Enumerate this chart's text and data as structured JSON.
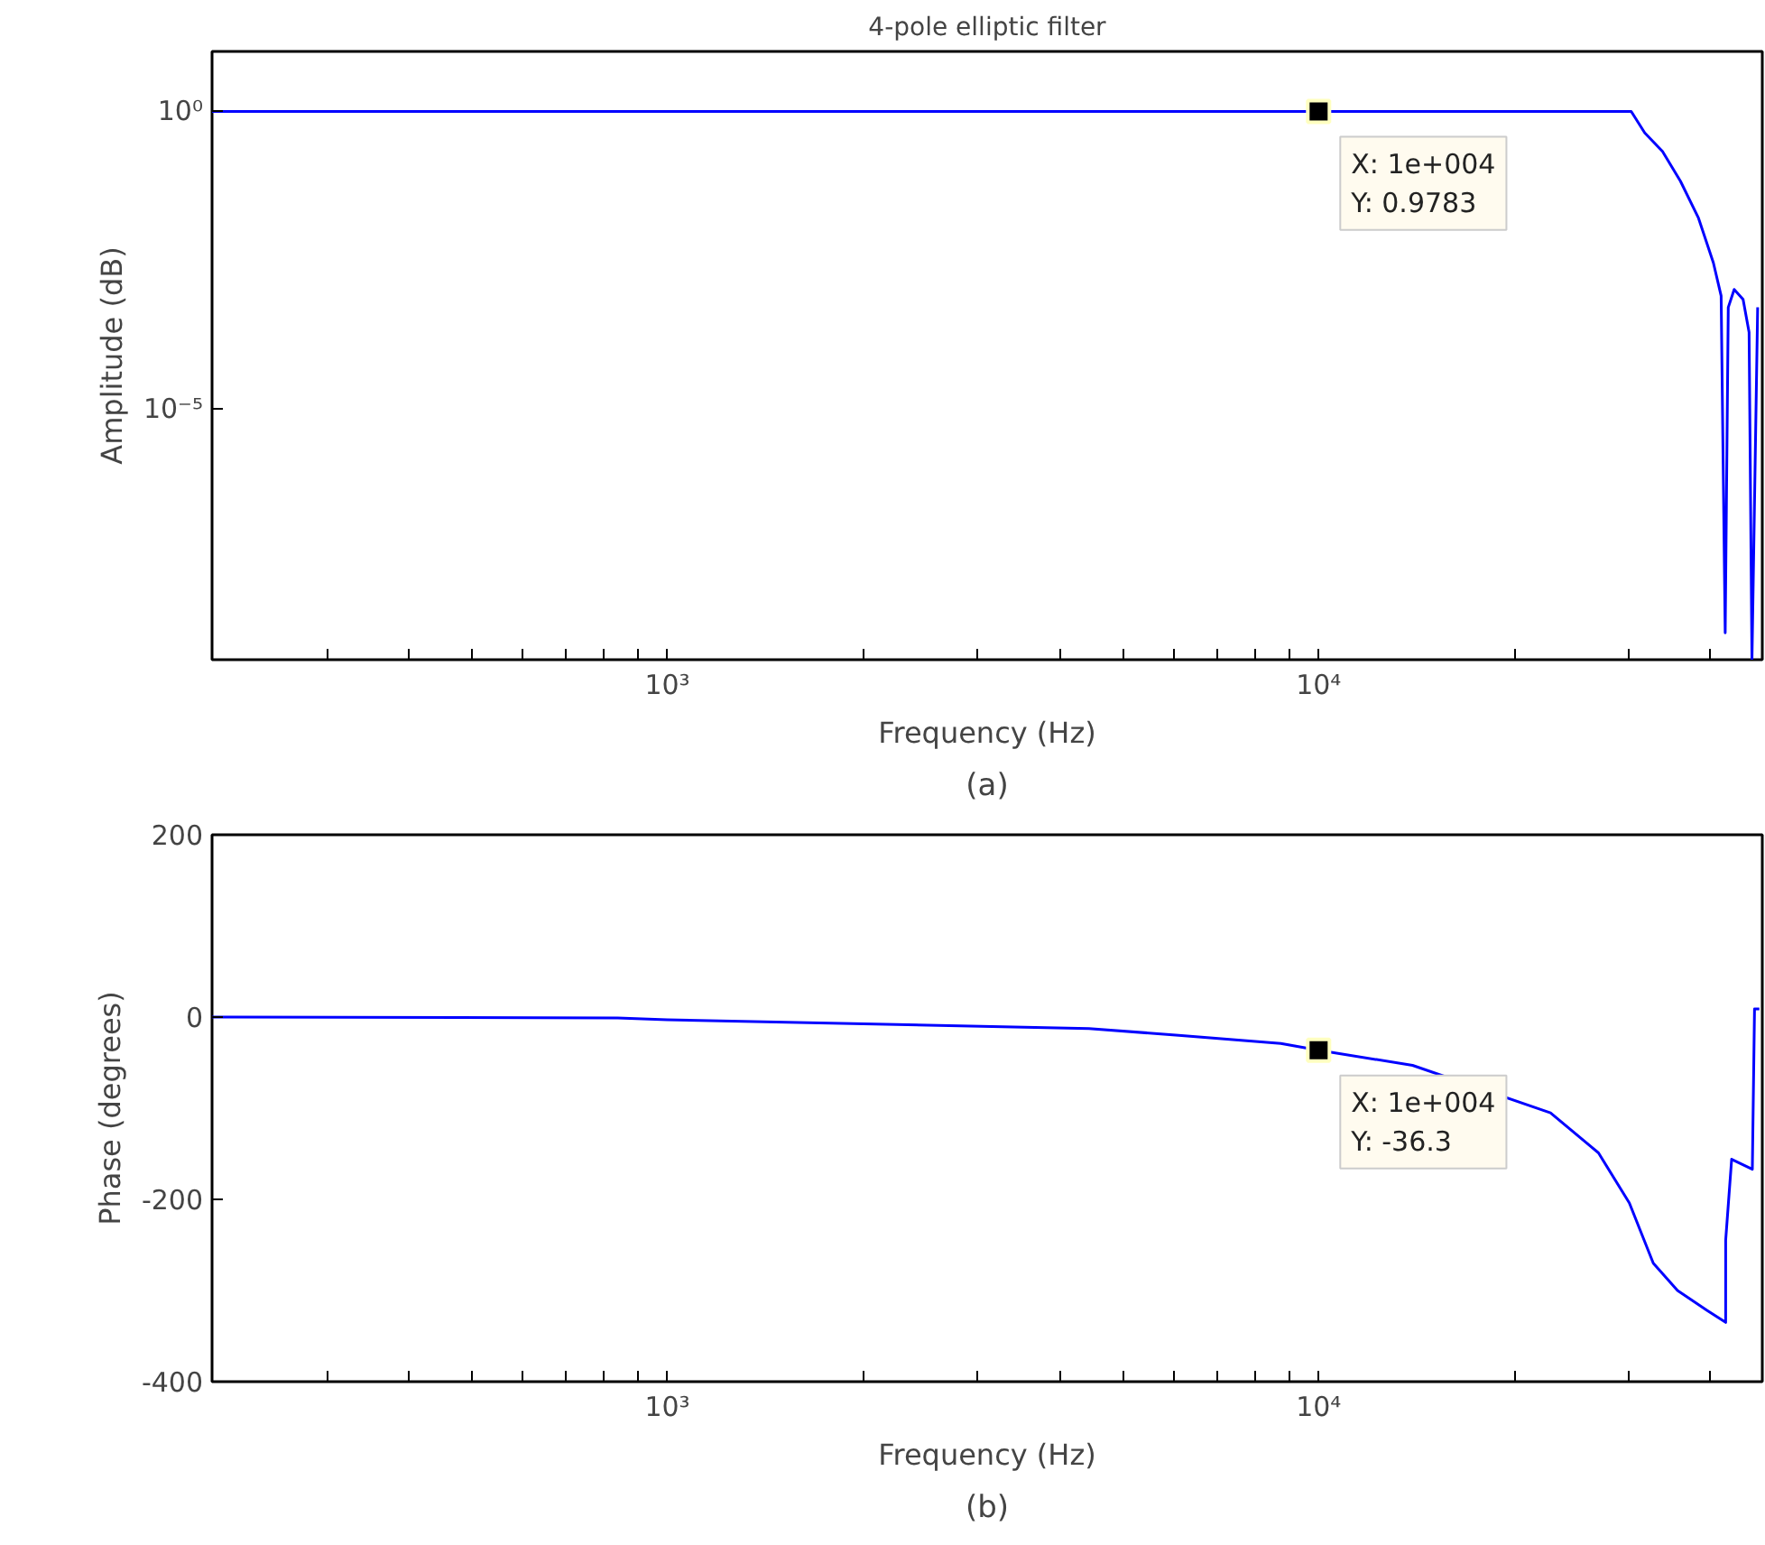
{
  "chart_data": [
    {
      "type": "line",
      "title": "4-pole elliptic filter",
      "xlabel": "Frequency (Hz)",
      "ylabel": "Amplitude (dB)",
      "log": "xy",
      "x": [
        200,
        1000,
        10000,
        30200,
        31680,
        33730,
        35940,
        38310,
        40380,
        41500,
        42100,
        42560,
        43460,
        44850,
        45810,
        46280,
        47220
      ],
      "series": [
        {
          "color": "#0000ff",
          "values": [
            0.9783,
            0.9783,
            0.9783,
            0.9783,
            0.427,
            0.209,
            0.066,
            0.0158,
            0.0028,
            0.00078,
            1.7e-09,
            0.0005,
            0.001,
            0.00068,
            0.00019,
            6e-10,
            0.0005
          ]
        }
      ],
      "xlim": [
        200,
        48000
      ],
      "ylim": [
        6e-10,
        10
      ],
      "xticks": [
        {
          "value": 300,
          "label": null
        },
        {
          "value": 400,
          "label": null
        },
        {
          "value": 500,
          "label": null
        },
        {
          "value": 600,
          "label": null
        },
        {
          "value": 700,
          "label": null
        },
        {
          "value": 800,
          "label": null
        },
        {
          "value": 900,
          "label": null
        },
        {
          "value": 1000,
          "label": "10³"
        },
        {
          "value": 2000,
          "label": null
        },
        {
          "value": 3000,
          "label": null
        },
        {
          "value": 4000,
          "label": null
        },
        {
          "value": 5000,
          "label": null
        },
        {
          "value": 6000,
          "label": null
        },
        {
          "value": 7000,
          "label": null
        },
        {
          "value": 8000,
          "label": null
        },
        {
          "value": 9000,
          "label": null
        },
        {
          "value": 10000,
          "label": "10⁴"
        },
        {
          "value": 20000,
          "label": null
        },
        {
          "value": 30000,
          "label": null
        },
        {
          "value": 40000,
          "label": null
        }
      ],
      "yticks": [
        {
          "value": 1e-05,
          "label": "10⁻⁵"
        },
        {
          "value": 1,
          "label": "10⁰"
        }
      ],
      "annotations": [
        {
          "text": "X: 1e+004\nY: 0.9783",
          "x": 10000,
          "y": 0.9783
        },
        "(a)"
      ]
    },
    {
      "type": "line",
      "xlabel": "Frequency (Hz)",
      "ylabel": "Phase (degrees)",
      "log": "x",
      "x": [
        200,
        839,
        1000,
        4440,
        6100,
        8750,
        10000,
        13940,
        22700,
        26900,
        30000,
        32650,
        35570,
        39520,
        42170,
        42171,
        43070,
        46340,
        46700,
        47500
      ],
      "series": [
        {
          "color": "#0000ff",
          "values": [
            0,
            -1,
            -3,
            -12.6,
            -20,
            -29,
            -36.3,
            -53,
            -105,
            -149,
            -204,
            -270,
            -300,
            -322,
            -335,
            -245,
            -156,
            -167,
            9,
            9
          ]
        }
      ],
      "xlim": [
        200,
        48000
      ],
      "ylim": [
        -400,
        200
      ],
      "xticks": [
        {
          "value": 300,
          "label": null
        },
        {
          "value": 400,
          "label": null
        },
        {
          "value": 500,
          "label": null
        },
        {
          "value": 600,
          "label": null
        },
        {
          "value": 700,
          "label": null
        },
        {
          "value": 800,
          "label": null
        },
        {
          "value": 900,
          "label": null
        },
        {
          "value": 1000,
          "label": "10³"
        },
        {
          "value": 2000,
          "label": null
        },
        {
          "value": 3000,
          "label": null
        },
        {
          "value": 4000,
          "label": null
        },
        {
          "value": 5000,
          "label": null
        },
        {
          "value": 6000,
          "label": null
        },
        {
          "value": 7000,
          "label": null
        },
        {
          "value": 8000,
          "label": null
        },
        {
          "value": 9000,
          "label": null
        },
        {
          "value": 10000,
          "label": "10⁴"
        },
        {
          "value": 20000,
          "label": null
        },
        {
          "value": 30000,
          "label": null
        },
        {
          "value": 40000,
          "label": null
        }
      ],
      "yticks": [
        -400,
        -200,
        0,
        200
      ],
      "annotations": [
        {
          "text": "X: 1e+004\nY: -36.3",
          "x": 10000,
          "y": -36.3
        },
        "(b)"
      ]
    }
  ]
}
